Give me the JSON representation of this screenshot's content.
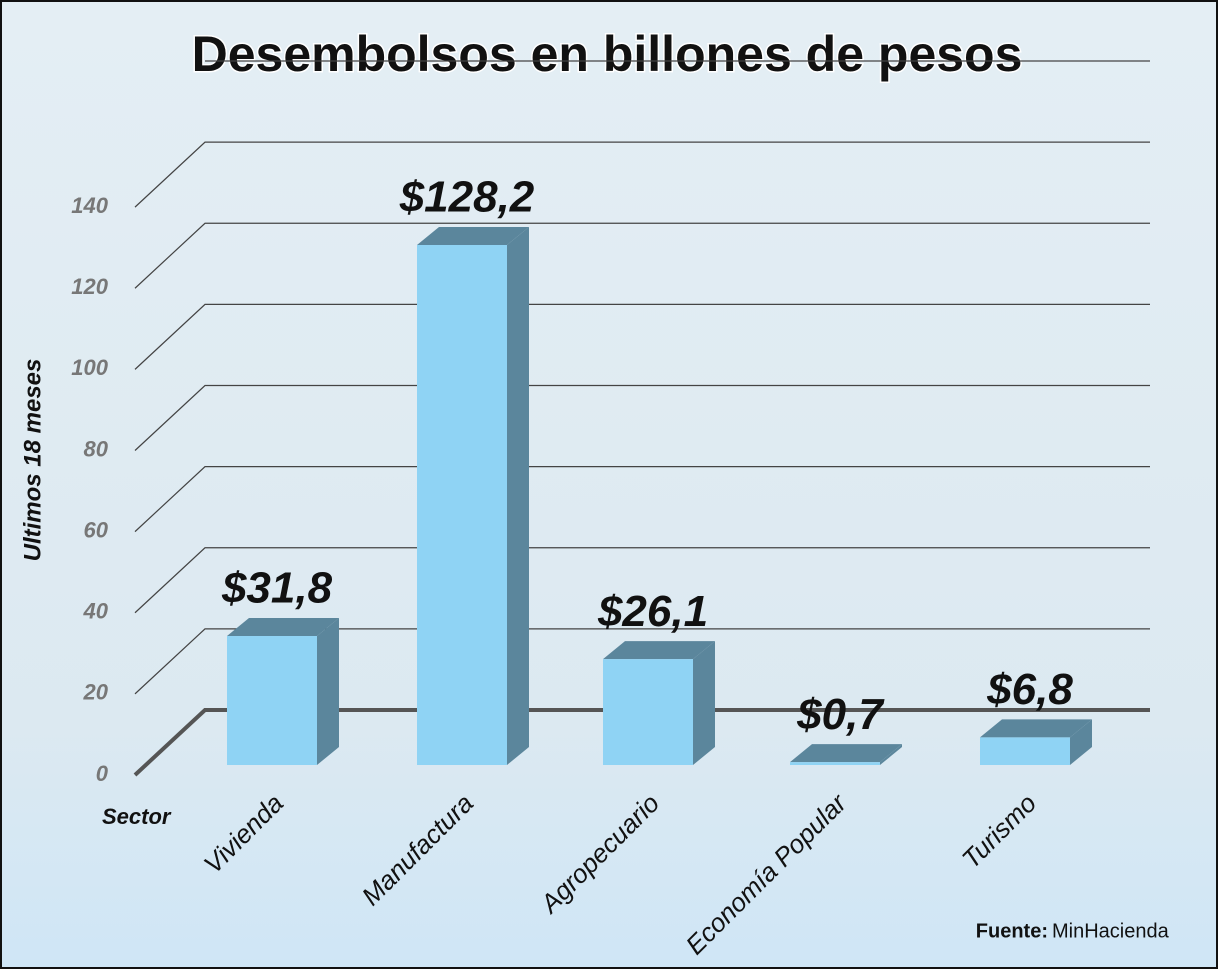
{
  "chart_data": {
    "type": "bar3d",
    "title": "Desembolsos en billones de pesos",
    "y_label": "Ultimos 18 meses",
    "x_label": "Sector",
    "categories": [
      "Vivienda",
      "Manufactura",
      "Agropecuario",
      "Economía Popular",
      "Turismo"
    ],
    "values": [
      31.8,
      128.2,
      26.1,
      0.7,
      6.8
    ],
    "value_labels": [
      "$31,8",
      "$128,2",
      "$26,1",
      "$0,7",
      "$6,8"
    ],
    "color": "#8fd3f4",
    "side_color": "#5b869c",
    "ylim": [
      0,
      160
    ],
    "yticks": [
      0,
      20,
      40,
      60,
      80,
      100,
      120,
      140
    ],
    "grid": true,
    "source_label": "Fuente:",
    "source": "MinHacienda"
  }
}
